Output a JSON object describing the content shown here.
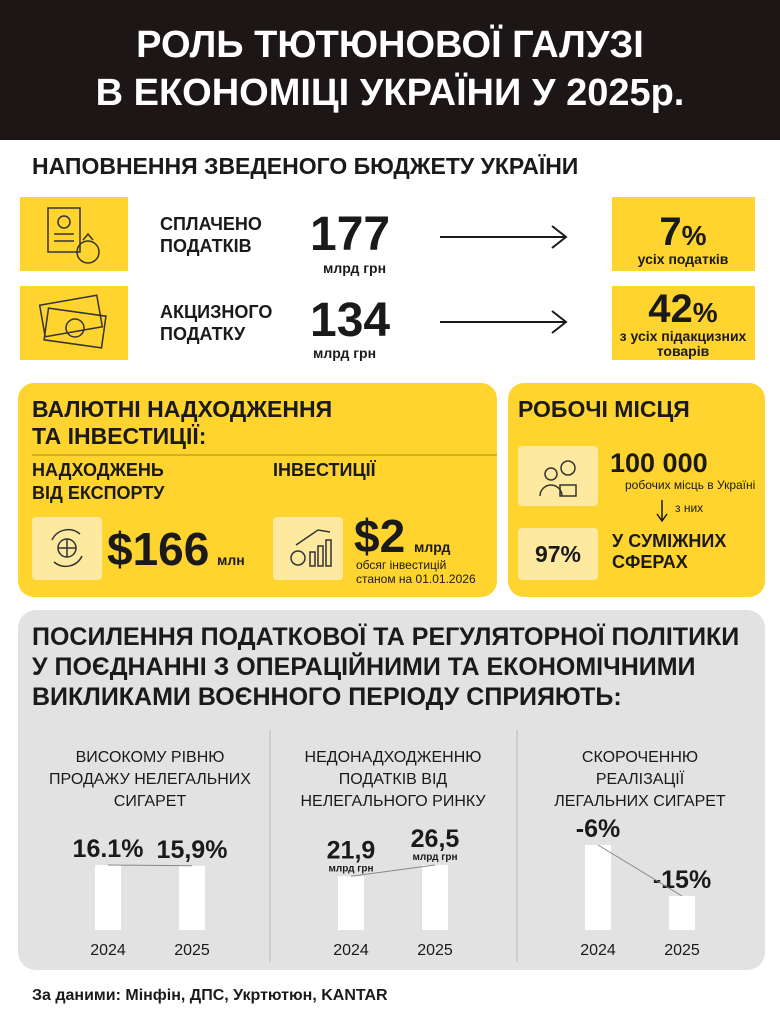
{
  "header": {
    "title_lines": [
      "РОЛЬ ТЮТЮНОВОЇ ГАЛУЗІ",
      "В ЕКОНОМІЦІ УКРАЇНИ У 2025р."
    ]
  },
  "budget": {
    "title": "НАПОВНЕННЯ ЗВЕДЕНОГО БЮДЖЕТУ УКРАЇНИ",
    "rows": [
      {
        "label_lines": [
          "СПЛАЧЕНО",
          "ПОДАТКІВ"
        ],
        "value": 177,
        "unit": "млрд грн",
        "share": 7,
        "share_unit": "%",
        "share_note_lines": [
          "усіх податків"
        ]
      },
      {
        "label_lines": [
          "АКЦИЗНОГО",
          "ПОДАТКУ"
        ],
        "value": 134,
        "unit": "млрд грн",
        "share": 42,
        "share_unit": "%",
        "share_note_lines": [
          "з усіх підакцизних",
          "товарів"
        ]
      }
    ]
  },
  "currency": {
    "title_lines": [
      "ВАЛЮТНІ НАДХОДЖЕННЯ",
      "ТА ІНВЕСТИЦІЇ:"
    ],
    "export": {
      "label_lines": [
        "НАДХОДЖЕНЬ",
        "ВІД ЕКСПОРТУ"
      ],
      "value": "$166",
      "unit": "млн"
    },
    "investment": {
      "label": "ІНВЕСТИЦІЇ",
      "value": "$2",
      "unit": "млрд",
      "note_lines": [
        "обсяг інвестицій",
        "станом на 01.01.2026"
      ]
    }
  },
  "jobs": {
    "title": "РОБОЧІ МІСЦЯ",
    "value": "100 000",
    "note": "робочих місць в Україні",
    "arrow_note": "з них",
    "share": "97%",
    "share_label_lines": [
      "У СУМІЖНИХ",
      "СФЕРАХ"
    ]
  },
  "policy": {
    "title_lines": [
      "ПОСИЛЕННЯ ПОДАТКОВОЇ ТА РЕГУЛЯТОРНОЇ ПОЛІТИКИ",
      "У ПОЄДНАННІ З ОПЕРАЦІЙНИМИ ТА ЕКОНОМІЧНИМИ",
      "ВИКЛИКАМИ ВОЄННОГО ПЕРІОДУ СПРИЯЮТЬ:"
    ],
    "charts": [
      {
        "title_lines": [
          "ВИСОКОМУ РІВНЮ",
          "ПРОДАЖУ НЕЛЕГАЛЬНИХ",
          "СИГАРЕТ"
        ],
        "categories": [
          "2024",
          "2025"
        ],
        "values": [
          16.1,
          15.9
        ],
        "value_labels": [
          "16.1%",
          "15,9%"
        ]
      },
      {
        "title_lines": [
          "НЕДОНАДХОДЖЕННЮ",
          "ПОДАТКІВ ВІД",
          "НЕЛЕГАЛЬНОГО РИНКУ"
        ],
        "categories": [
          "2024",
          "2025"
        ],
        "values": [
          21.9,
          26.5
        ],
        "value_labels": [
          "21,9",
          "26,5"
        ],
        "unit_labels": [
          "млрд грн",
          "млрд грн"
        ]
      },
      {
        "title_lines": [
          "СКОРОЧЕННЮ",
          "РЕАЛІЗАЦІЇ",
          "ЛЕГАЛЬНИХ СИГАРЕТ"
        ],
        "categories": [
          "2024",
          "2025"
        ],
        "values": [
          -6,
          -15
        ],
        "value_labels": [
          "-6%",
          "-15%"
        ]
      }
    ]
  },
  "source": "За даними: Мінфін, ДПС, Укртютюн, KANTAR"
}
